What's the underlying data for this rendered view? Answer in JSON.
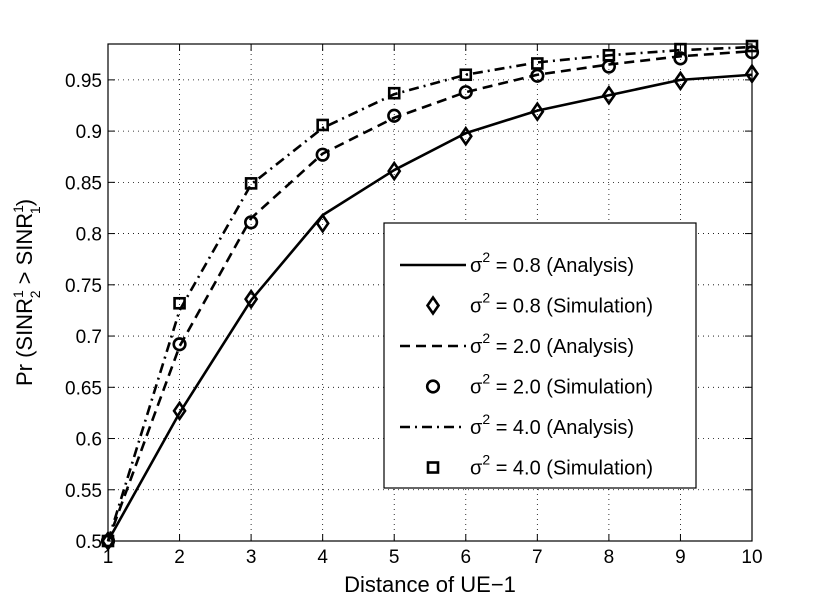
{
  "chart_data": {
    "type": "line",
    "xlabel": "Distance of UE−1",
    "ylabel": {
      "prefix": "Pr (SINR",
      "sub1": "2",
      "sup1": "1",
      "mid": " > SINR",
      "sub2": "1",
      "sup2": "1",
      "suffix": ")"
    },
    "xlim": [
      1,
      10
    ],
    "ylim": [
      0.5,
      0.985
    ],
    "x_ticks": [
      1,
      2,
      3,
      4,
      5,
      6,
      7,
      8,
      9,
      10
    ],
    "y_ticks": [
      0.5,
      0.55,
      0.6,
      0.65,
      0.7,
      0.75,
      0.8,
      0.85,
      0.9,
      0.95
    ],
    "y_tick_labels": [
      "0.5",
      "0.55",
      "0.6",
      "0.65",
      "0.7",
      "0.75",
      "0.8",
      "0.85",
      "0.9",
      "0.95"
    ],
    "grid": true,
    "legend_position": "center-right",
    "x": [
      1,
      2,
      3,
      4,
      5,
      6,
      7,
      8,
      9,
      10
    ],
    "series": [
      {
        "name": "σ² = 0.8 (Analysis)",
        "legend_prefix": "σ",
        "legend_sup": "2",
        "legend_suffix": " = 0.8 (Analysis)",
        "kind": "line",
        "dash": "solid",
        "color": "#000000",
        "values": [
          0.5,
          0.625,
          0.735,
          0.818,
          0.862,
          0.898,
          0.92,
          0.935,
          0.95,
          0.955
        ]
      },
      {
        "name": "σ² = 0.8 (Simulation)",
        "legend_prefix": "σ",
        "legend_sup": "2",
        "legend_suffix": " = 0.8 (Simulation)",
        "kind": "marker",
        "marker": "diamond",
        "color": "#000000",
        "values": [
          0.5,
          0.627,
          0.736,
          0.81,
          0.861,
          0.895,
          0.919,
          0.935,
          0.949,
          0.956
        ]
      },
      {
        "name": "σ² = 2.0 (Analysis)",
        "legend_prefix": "σ",
        "legend_sup": "2",
        "legend_suffix": " = 2.0 (Analysis)",
        "kind": "line",
        "dash": "dashed",
        "color": "#000000",
        "values": [
          0.5,
          0.69,
          0.815,
          0.878,
          0.913,
          0.938,
          0.955,
          0.965,
          0.973,
          0.978
        ]
      },
      {
        "name": "σ² = 2.0 (Simulation)",
        "legend_prefix": "σ",
        "legend_sup": "2",
        "legend_suffix": " = 2.0 (Simulation)",
        "kind": "marker",
        "marker": "circle",
        "color": "#000000",
        "values": [
          0.5,
          0.692,
          0.811,
          0.877,
          0.915,
          0.938,
          0.954,
          0.963,
          0.971,
          0.977
        ]
      },
      {
        "name": "σ² = 4.0 (Analysis)",
        "legend_prefix": "σ",
        "legend_sup": "2",
        "legend_suffix": " = 4.0 (Analysis)",
        "kind": "line",
        "dash": "dashdot",
        "color": "#000000",
        "values": [
          0.5,
          0.725,
          0.848,
          0.903,
          0.936,
          0.955,
          0.967,
          0.974,
          0.979,
          0.982
        ]
      },
      {
        "name": "σ² = 4.0 (Simulation)",
        "legend_prefix": "σ",
        "legend_sup": "2",
        "legend_suffix": " = 4.0 (Simulation)",
        "kind": "marker",
        "marker": "square",
        "color": "#000000",
        "values": [
          0.5,
          0.732,
          0.849,
          0.906,
          0.937,
          0.955,
          0.966,
          0.974,
          0.98,
          0.983
        ]
      }
    ]
  }
}
